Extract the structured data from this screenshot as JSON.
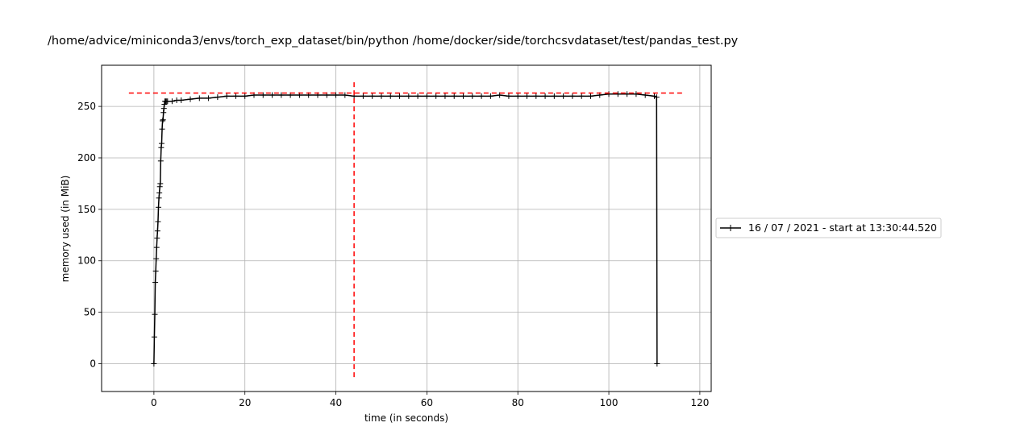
{
  "chart_data": {
    "type": "line",
    "title": "/home/advice/miniconda3/envs/torch_exp_dataset/bin/python /home/docker/side/torchcsvdataset/test/pandas_test.py",
    "xlabel": "time (in seconds)",
    "ylabel": "memory used (in MiB)",
    "xlim": [
      -11.5,
      122.5
    ],
    "ylim": [
      -27,
      290
    ],
    "xticks": [
      0,
      20,
      40,
      60,
      80,
      100,
      120
    ],
    "yticks": [
      0,
      50,
      100,
      150,
      200,
      250
    ],
    "grid": true,
    "legend_position": "right, outside plot area",
    "series": [
      {
        "name": "16 / 07 / 2021 - start at 13:30:44.520",
        "color": "#000000",
        "marker": "+",
        "x": [
          0.0,
          0.1,
          0.2,
          0.3,
          0.4,
          0.5,
          0.6,
          0.7,
          0.8,
          0.9,
          1.0,
          1.1,
          1.2,
          1.3,
          1.4,
          1.5,
          1.6,
          1.7,
          1.8,
          1.9,
          2.0,
          2.1,
          2.2,
          2.3,
          2.4,
          2.6,
          2.8,
          3.0,
          4,
          5,
          6,
          8,
          10,
          12,
          14,
          16,
          18,
          20,
          22,
          24,
          26,
          28,
          30,
          32,
          34,
          36,
          38,
          40,
          42,
          44,
          46,
          48,
          50,
          52,
          54,
          56,
          58,
          60,
          62,
          64,
          66,
          68,
          70,
          72,
          74,
          76,
          78,
          80,
          82,
          84,
          86,
          88,
          90,
          92,
          94,
          96,
          98,
          100,
          102,
          104,
          106,
          108,
          110,
          110.5,
          110.6
        ],
        "y": [
          0,
          26,
          48,
          79,
          90,
          102,
          113,
          122,
          129,
          138,
          152,
          161,
          166,
          172,
          175,
          197,
          210,
          214,
          228,
          236,
          237,
          244,
          248,
          252,
          255,
          255,
          255,
          255,
          255,
          256,
          256,
          257,
          258,
          258,
          259,
          260,
          260,
          260,
          261,
          261,
          261,
          261,
          261,
          261,
          261,
          261,
          261,
          261,
          261,
          260,
          260,
          260,
          260,
          260,
          260,
          260,
          260,
          260,
          260,
          260,
          260,
          260,
          260,
          260,
          260,
          261,
          260,
          260,
          260,
          260,
          260,
          260,
          260,
          260,
          260,
          260,
          261,
          262,
          262,
          262,
          262,
          261,
          260,
          259,
          0
        ]
      }
    ],
    "reference_lines": [
      {
        "orientation": "horizontal",
        "value": 263,
        "color": "#ff0000",
        "style": "dashed",
        "from": -5.5,
        "to": 116.5
      },
      {
        "orientation": "vertical",
        "value": 44,
        "color": "#ff0000",
        "style": "dashed",
        "from": -13,
        "to": 276
      }
    ]
  }
}
